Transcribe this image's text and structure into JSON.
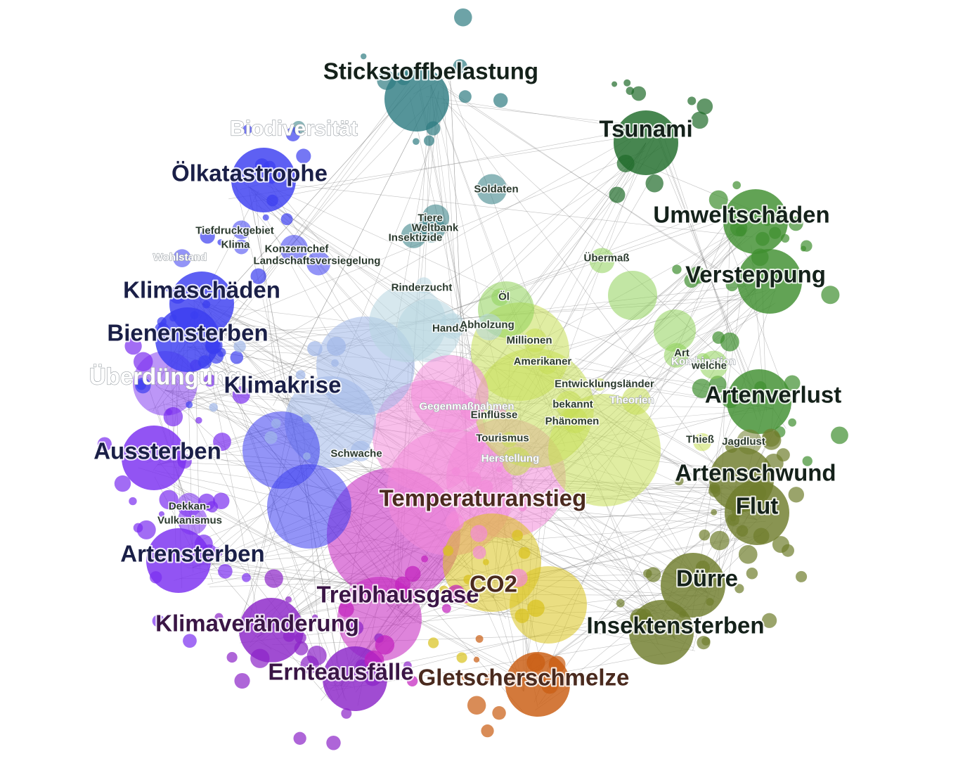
{
  "graph": {
    "palette": {
      "teal": "#2f7c82",
      "darkgreen": "#1f6b2a",
      "green": "#3f8f2f",
      "lightgreen": "#8fd25a",
      "yellowgreen": "#c6df56",
      "olive": "#6f7d2c",
      "orange": "#c95b10",
      "yellow": "#d9c21b",
      "pink": "#f28ad8",
      "magenta": "#c21fbe",
      "purple": "#8b24c8",
      "violet": "#7a2ef0",
      "blue": "#3a3df0",
      "lightblue": "#9fb6e8",
      "paleblue": "#b6d5e0",
      "edge": "#777777"
    },
    "nodes": [
      {
        "id": "stickstoffbelastung",
        "label": "Stickstoffbelastung",
        "tier": "xl",
        "color": "teal"
      },
      {
        "id": "biodiversitaet",
        "label": "Biodiversität",
        "tier": "l",
        "color": "teal",
        "faded": true
      },
      {
        "id": "oelkatastrophe",
        "label": "Ölkatastrophe",
        "tier": "xl",
        "color": "blue"
      },
      {
        "id": "tsunami",
        "label": "Tsunami",
        "tier": "xl",
        "color": "darkgreen"
      },
      {
        "id": "umweltschaeden",
        "label": "Umweltschäden",
        "tier": "xl",
        "color": "green"
      },
      {
        "id": "versteppung",
        "label": "Versteppung",
        "tier": "xl",
        "color": "green"
      },
      {
        "id": "artenverlust",
        "label": "Artenverlust",
        "tier": "xl",
        "color": "green"
      },
      {
        "id": "artenschwund",
        "label": "Artenschwund",
        "tier": "xl",
        "color": "olive"
      },
      {
        "id": "flut",
        "label": "Flut",
        "tier": "xl",
        "color": "olive"
      },
      {
        "id": "duerre",
        "label": "Dürre",
        "tier": "xl",
        "color": "olive"
      },
      {
        "id": "insektensterben",
        "label": "Insektensterben",
        "tier": "xl",
        "color": "olive"
      },
      {
        "id": "gletscherschmelze",
        "label": "Gletscherschmelze",
        "tier": "xl",
        "color": "orange"
      },
      {
        "id": "ernteausfaelle",
        "label": "Ernteausfälle",
        "tier": "xl",
        "color": "purple"
      },
      {
        "id": "klimaveraenderung",
        "label": "Klimaveränderung",
        "tier": "xl",
        "color": "purple"
      },
      {
        "id": "artensterben",
        "label": "Artensterben",
        "tier": "xl",
        "color": "violet"
      },
      {
        "id": "aussterben",
        "label": "Aussterben",
        "tier": "xl",
        "color": "violet"
      },
      {
        "id": "ueberduengung",
        "label": "Überdüngung",
        "tier": "xl",
        "color": "violet",
        "faded": true
      },
      {
        "id": "bienensterben",
        "label": "Bienensterben",
        "tier": "xl",
        "color": "blue"
      },
      {
        "id": "klimaschaeden",
        "label": "Klimaschäden",
        "tier": "xl",
        "color": "blue"
      },
      {
        "id": "klimakrise",
        "label": "Klimakrise",
        "tier": "xl",
        "color": "lightblue"
      },
      {
        "id": "temperaturanstieg",
        "label": "Temperaturanstieg",
        "tier": "xl",
        "color": "pink"
      },
      {
        "id": "treibhausgase",
        "label": "Treibhausgase",
        "tier": "xl",
        "color": "magenta"
      },
      {
        "id": "co2",
        "label": "CO2",
        "tier": "xl",
        "color": "yellow"
      },
      {
        "id": "soldaten",
        "label": "Soldaten",
        "tier": "s",
        "color": "teal"
      },
      {
        "id": "tiere",
        "label": "Tiere",
        "tier": "s",
        "color": "teal"
      },
      {
        "id": "weltbank",
        "label": "Weltbank",
        "tier": "s",
        "color": "teal"
      },
      {
        "id": "insektizide",
        "label": "Insektizide",
        "tier": "s",
        "color": "teal"
      },
      {
        "id": "tiefdruckgebiet",
        "label": "Tiefdruckgebiet",
        "tier": "s",
        "color": "blue"
      },
      {
        "id": "klima",
        "label": "Klima",
        "tier": "s",
        "color": "blue"
      },
      {
        "id": "konzernchef",
        "label": "Konzernchef",
        "tier": "s",
        "color": "blue"
      },
      {
        "id": "landschaftsversiegelung",
        "label": "Landschaftsversiegelung",
        "tier": "s",
        "color": "blue"
      },
      {
        "id": "wohlstand",
        "label": "Wohlstand",
        "tier": "s",
        "color": "blue",
        "faded": true
      },
      {
        "id": "rinderzucht",
        "label": "Rinderzucht",
        "tier": "s",
        "color": "paleblue"
      },
      {
        "id": "handel",
        "label": "Handel",
        "tier": "s",
        "color": "paleblue"
      },
      {
        "id": "abholzung",
        "label": "Abholzung",
        "tier": "s",
        "color": "paleblue"
      },
      {
        "id": "oel",
        "label": "Öl",
        "tier": "s",
        "color": "lightgreen"
      },
      {
        "id": "uebermass",
        "label": "Übermaß",
        "tier": "s",
        "color": "lightgreen"
      },
      {
        "id": "millionen",
        "label": "Millionen",
        "tier": "s",
        "color": "yellowgreen"
      },
      {
        "id": "amerikaner",
        "label": "Amerikaner",
        "tier": "s",
        "color": "yellowgreen"
      },
      {
        "id": "art",
        "label": "Art",
        "tier": "s",
        "color": "lightgreen"
      },
      {
        "id": "kombination",
        "label": "Kombination",
        "tier": "s",
        "color": "lightgreen",
        "faded": true
      },
      {
        "id": "welche",
        "label": "welche",
        "tier": "s",
        "color": "lightgreen"
      },
      {
        "id": "entwicklungslaender",
        "label": "Entwicklungsländer",
        "tier": "s",
        "color": "yellowgreen"
      },
      {
        "id": "bekannt",
        "label": "bekannt",
        "tier": "s",
        "color": "yellowgreen"
      },
      {
        "id": "theorien",
        "label": "Theorien",
        "tier": "s",
        "color": "yellowgreen",
        "faded": true
      },
      {
        "id": "phaenomen",
        "label": "Phänomen",
        "tier": "s",
        "color": "yellowgreen"
      },
      {
        "id": "gegenmassnahmen",
        "label": "Gegenmaßnahmen",
        "tier": "s",
        "color": "pink",
        "faded": true
      },
      {
        "id": "einfluesse",
        "label": "Einflüsse",
        "tier": "s",
        "color": "pink"
      },
      {
        "id": "tourismus",
        "label": "Tourismus",
        "tier": "s",
        "color": "yellowgreen"
      },
      {
        "id": "herstellung",
        "label": "Herstellung",
        "tier": "s",
        "color": "yellowgreen",
        "faded": true
      },
      {
        "id": "schwache",
        "label": "Schwache",
        "tier": "s",
        "color": "lightblue"
      },
      {
        "id": "thiess",
        "label": "Thieß",
        "tier": "s",
        "color": "yellowgreen"
      },
      {
        "id": "jagdlust",
        "label": "Jagdlust",
        "tier": "s",
        "color": "olive"
      },
      {
        "id": "dekkan",
        "label": "Dekkan-",
        "tier": "s",
        "color": "violet"
      },
      {
        "id": "vulkanismus",
        "label": "Vulkanismus",
        "tier": "s",
        "color": "violet"
      }
    ]
  }
}
